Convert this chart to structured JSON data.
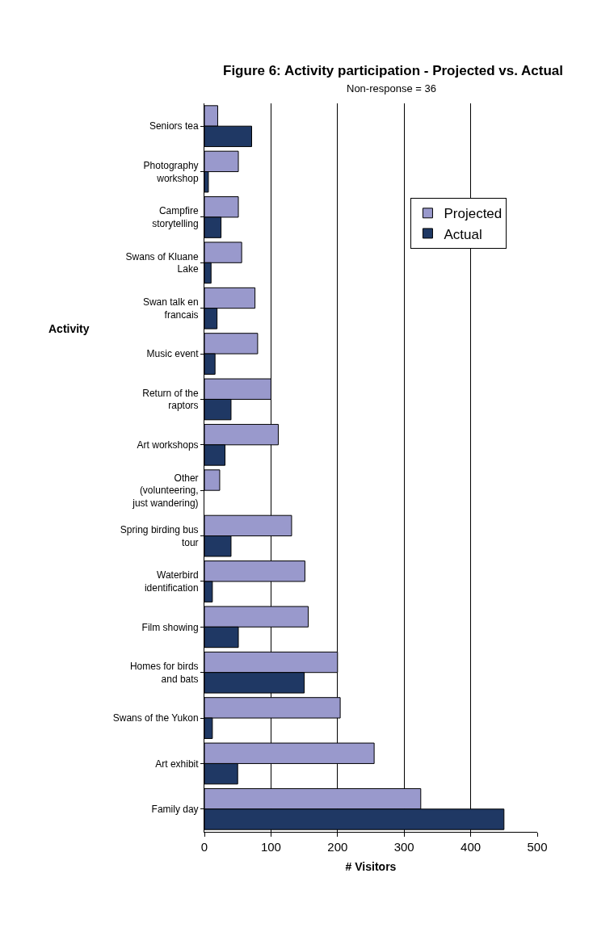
{
  "chart_data": {
    "type": "bar",
    "orientation": "horizontal",
    "title": "Figure 6: Activity participation - Projected vs. Actual",
    "subtitle": "Non-response = 36",
    "xlabel": "# Visitors",
    "ylabel": "Activity",
    "categories": [
      "Seniors tea",
      "Photography workshop",
      "Campfire storytelling",
      "Swans of Kluane Lake",
      "Swan talk en francais",
      "Music event",
      "Return of the raptors",
      "Art workshops",
      "Other (volunteering, just wandering)",
      "Spring birding bus tour",
      "Waterbird identification",
      "Film showing",
      "Homes for birds and bats",
      "Swans of the Yukon",
      "Art exhibit",
      "Family day"
    ],
    "series": [
      {
        "name": "Projected",
        "color": "#9999cc",
        "values": [
          20,
          51,
          51,
          56,
          76,
          80,
          100,
          111,
          23,
          131,
          151,
          156,
          200,
          204,
          255,
          325
        ]
      },
      {
        "name": "Actual",
        "color": "#1f3864",
        "values": [
          71,
          6,
          25,
          10,
          19,
          16,
          40,
          31,
          null,
          40,
          12,
          51,
          150,
          12,
          50,
          450
        ]
      }
    ],
    "xlim": [
      0,
      500
    ],
    "xticks": [
      0,
      100,
      200,
      300,
      400,
      500
    ],
    "grid": "x",
    "legend": "top right"
  }
}
